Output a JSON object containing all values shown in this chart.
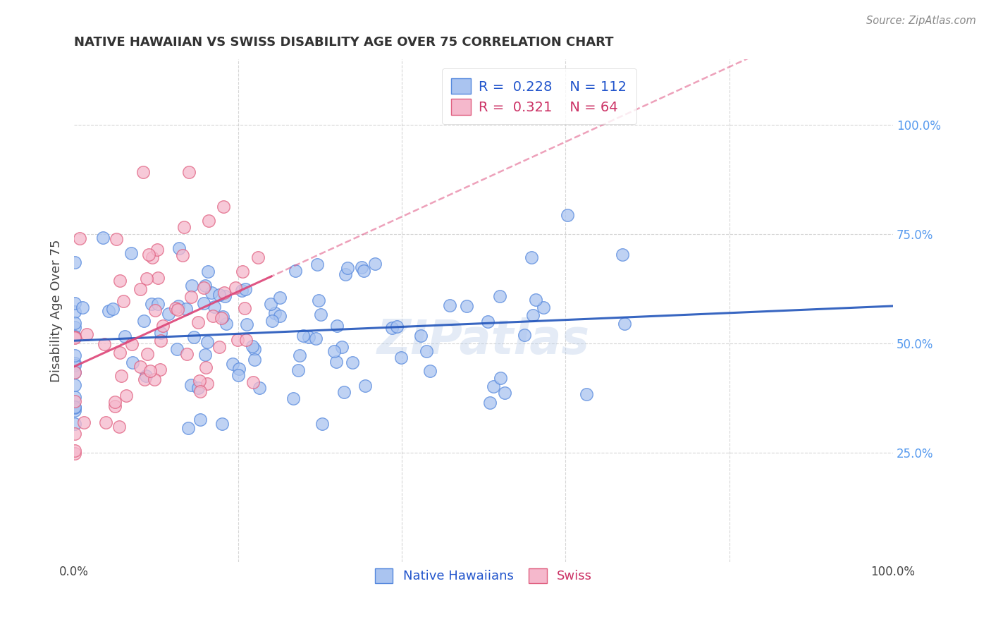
{
  "title": "NATIVE HAWAIIAN VS SWISS DISABILITY AGE OVER 75 CORRELATION CHART",
  "source": "Source: ZipAtlas.com",
  "ylabel": "Disability Age Over 75",
  "legend_blue_R": "0.228",
  "legend_blue_N": "112",
  "legend_pink_R": "0.321",
  "legend_pink_N": "64",
  "legend_label_blue": "Native Hawaiians",
  "legend_label_pink": "Swiss",
  "watermark": "ZIPatlas",
  "blue_fill": "#aac4f0",
  "blue_edge": "#5588dd",
  "pink_fill": "#f5b8cc",
  "pink_edge": "#e06080",
  "blue_line_color": "#2255bb",
  "pink_line_color": "#dd4477",
  "title_color": "#333333",
  "right_axis_color": "#5599ee",
  "text_blue": "#2255cc",
  "text_pink": "#cc3366",
  "seed": 7,
  "blue_n": 112,
  "pink_n": 64,
  "blue_R": 0.228,
  "pink_R": 0.321,
  "xmin": 0.0,
  "xmax": 1.0,
  "ymin": 0.0,
  "ymax": 1.15
}
